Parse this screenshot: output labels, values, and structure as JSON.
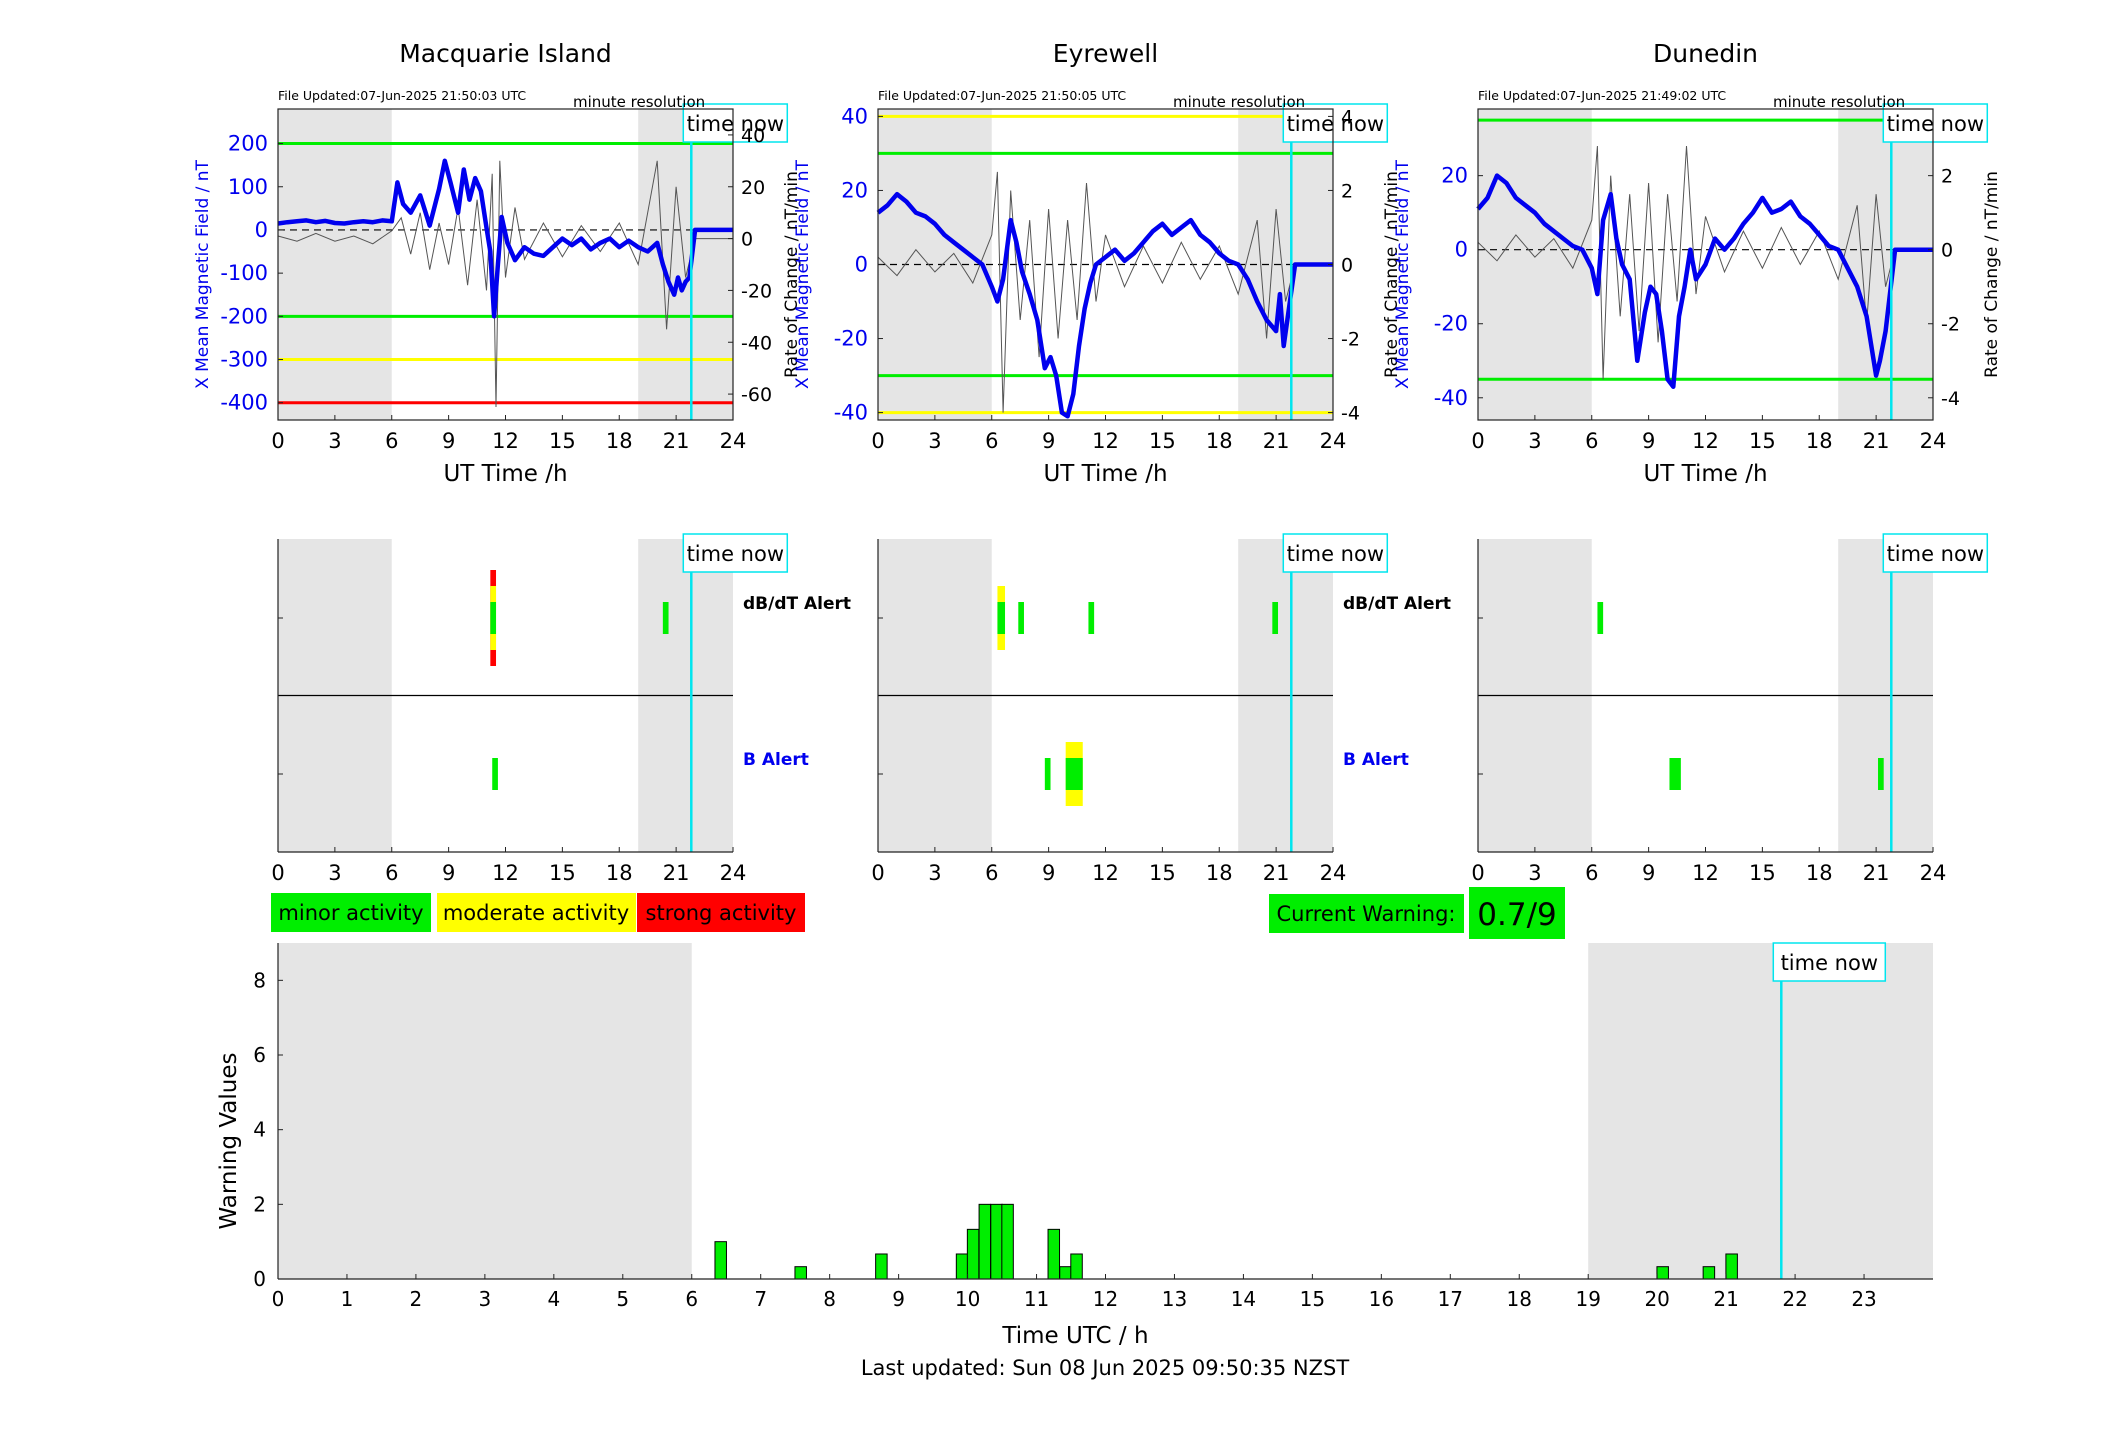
{
  "footer": "Last updated: Sun 08 Jun 2025 09:50:35 NZST",
  "time_now_label": "time now",
  "minute_resolution_label": "minute resolution",
  "colors": {
    "field_trace": "#0000ee",
    "rate_trace": "#555555",
    "time_now_line": "#00e5ee",
    "night_shade": "#e5e5e5",
    "minor": "#00ee00",
    "moderate": "#ffff00",
    "strong": "#ff0000",
    "alert_label_dbdt": "#000000",
    "alert_label_b": "#0000ee"
  },
  "legend": {
    "items": [
      {
        "label": "minor activity",
        "color": "#00ee00"
      },
      {
        "label": "moderate activity",
        "color": "#ffff00"
      },
      {
        "label": "strong activity",
        "color": "#ff0000"
      }
    ]
  },
  "current_warning": {
    "label": "Current Warning:",
    "value": "0.7/9"
  },
  "chart_data": [
    {
      "type": "line",
      "title": "Macquarie Island",
      "file_updated": "File Updated:07-Jun-2025 21:50:03 UTC",
      "xlabel": "UT Time /h",
      "ylabel": "X Mean Magnetic Field / nT",
      "ylabel_right": "Rate of Change / nT/min",
      "xlim": [
        0,
        24
      ],
      "xticks": [
        0,
        3,
        6,
        9,
        12,
        15,
        18,
        21,
        24
      ],
      "ylim": [
        -440,
        280
      ],
      "yticks": [
        -400,
        -300,
        -200,
        -100,
        0,
        100,
        200
      ],
      "ylim_right": [
        -70,
        50
      ],
      "yticks_right": [
        -60,
        -40,
        -20,
        0,
        20,
        40
      ],
      "night_shading_hours": [
        [
          0,
          6
        ],
        [
          19,
          24
        ]
      ],
      "time_now_hour": 21.8,
      "thresholds": [
        {
          "value": 200,
          "color": "#00ee00"
        },
        {
          "value": -200,
          "color": "#00ee00"
        },
        {
          "value": -300,
          "color": "#ffff00"
        },
        {
          "value": -400,
          "color": "#ff0000"
        }
      ],
      "field_series": {
        "x": [
          0,
          0.5,
          1,
          1.5,
          2,
          2.5,
          3,
          3.5,
          4,
          4.5,
          5,
          5.5,
          6,
          6.3,
          6.6,
          7,
          7.5,
          8,
          8.5,
          8.8,
          9.1,
          9.5,
          9.8,
          10.1,
          10.4,
          10.7,
          11,
          11.2,
          11.4,
          11.6,
          11.8,
          12.1,
          12.5,
          13,
          13.5,
          14,
          14.5,
          15,
          15.5,
          16,
          16.5,
          17,
          17.5,
          18,
          18.5,
          19,
          19.5,
          20,
          20.3,
          20.6,
          20.9,
          21.1,
          21.3,
          21.5,
          21.7,
          22,
          24
        ],
        "y": [
          15,
          18,
          20,
          22,
          18,
          21,
          16,
          15,
          18,
          20,
          18,
          22,
          20,
          110,
          60,
          40,
          80,
          10,
          95,
          160,
          110,
          40,
          140,
          70,
          120,
          90,
          5,
          -50,
          -200,
          -80,
          30,
          -30,
          -70,
          -40,
          -55,
          -60,
          -40,
          -20,
          -35,
          -20,
          -45,
          -30,
          -20,
          -40,
          -25,
          -40,
          -50,
          -30,
          -80,
          -120,
          -150,
          -110,
          -140,
          -120,
          -110,
          0,
          0
        ]
      },
      "rate_series": {
        "x": [
          0,
          1,
          2,
          3,
          4,
          5,
          6,
          6.5,
          7,
          7.5,
          8,
          8.5,
          9,
          9.5,
          10,
          10.5,
          11,
          11.3,
          11.5,
          11.7,
          12,
          12.5,
          13,
          14,
          15,
          16,
          17,
          18,
          19,
          20,
          20.5,
          21,
          21.5,
          22,
          24
        ],
        "y": [
          1,
          -1,
          2,
          -1,
          1,
          -2,
          3,
          8,
          -6,
          10,
          -12,
          6,
          -10,
          12,
          -18,
          15,
          -20,
          25,
          -65,
          30,
          -15,
          12,
          -8,
          6,
          -7,
          5,
          -5,
          6,
          -10,
          30,
          -35,
          20,
          -15,
          0,
          0
        ]
      }
    },
    {
      "type": "line",
      "title": "Eyrewell",
      "file_updated": "File Updated:07-Jun-2025 21:50:05 UTC",
      "xlabel": "UT Time /h",
      "ylabel": "X Mean Magnetic Field / nT",
      "ylabel_right": "Rate of Change / nT/min",
      "xlim": [
        0,
        24
      ],
      "xticks": [
        0,
        3,
        6,
        9,
        12,
        15,
        18,
        21,
        24
      ],
      "ylim": [
        -42,
        42
      ],
      "yticks": [
        -40,
        -20,
        0,
        20,
        40
      ],
      "ylim_right": [
        -4.2,
        4.2
      ],
      "yticks_right": [
        -4,
        -2,
        0,
        2,
        4
      ],
      "night_shading_hours": [
        [
          0,
          6
        ],
        [
          19,
          24
        ]
      ],
      "time_now_hour": 21.8,
      "thresholds": [
        {
          "value": 40,
          "color": "#ffff00"
        },
        {
          "value": 30,
          "color": "#00ee00"
        },
        {
          "value": -30,
          "color": "#00ee00"
        },
        {
          "value": -40,
          "color": "#ffff00"
        }
      ],
      "field_series": {
        "x": [
          0,
          0.5,
          1,
          1.5,
          2,
          2.5,
          3,
          3.5,
          4,
          4.5,
          5,
          5.5,
          6,
          6.3,
          6.6,
          7,
          7.3,
          7.6,
          8,
          8.4,
          8.8,
          9.1,
          9.4,
          9.7,
          10,
          10.3,
          10.6,
          10.9,
          11.2,
          11.5,
          12,
          12.5,
          13,
          13.5,
          14,
          14.5,
          15,
          15.5,
          16,
          16.5,
          17,
          17.5,
          18,
          18.5,
          19,
          19.5,
          20,
          20.5,
          21,
          21.2,
          21.4,
          22,
          24
        ],
        "y": [
          14,
          16,
          19,
          17,
          14,
          13,
          11,
          8,
          6,
          4,
          2,
          0,
          -6,
          -10,
          -4,
          12,
          6,
          -2,
          -8,
          -15,
          -28,
          -25,
          -30,
          -40,
          -41,
          -35,
          -22,
          -12,
          -5,
          0,
          2,
          4,
          1,
          3,
          6,
          9,
          11,
          8,
          10,
          12,
          8,
          6,
          3,
          1,
          0,
          -4,
          -10,
          -15,
          -18,
          -8,
          -22,
          0,
          0
        ]
      },
      "rate_series": {
        "x": [
          0,
          1,
          2,
          3,
          4,
          5,
          6,
          6.3,
          6.6,
          7,
          7.5,
          8,
          8.5,
          9,
          9.5,
          10,
          10.5,
          11,
          11.5,
          12,
          13,
          14,
          15,
          16,
          17,
          18,
          19,
          20,
          20.5,
          21,
          21.5,
          22,
          24
        ],
        "y": [
          0.2,
          -0.3,
          0.4,
          -0.2,
          0.3,
          -0.5,
          0.8,
          2.5,
          -4,
          2,
          -1.5,
          1.2,
          -2.5,
          1.5,
          -2,
          1.2,
          -1.5,
          2.2,
          -1,
          0.8,
          -0.6,
          0.5,
          -0.5,
          0.6,
          -0.4,
          0.5,
          -0.8,
          1.2,
          -2,
          1.5,
          -1,
          0,
          0
        ]
      }
    },
    {
      "type": "line",
      "title": "Dunedin",
      "file_updated": "File Updated:07-Jun-2025 21:49:02 UTC",
      "xlabel": "UT Time /h",
      "ylabel": "X Mean Magnetic Field / nT",
      "ylabel_right": "Rate of Change / nT/min",
      "xlim": [
        0,
        24
      ],
      "xticks": [
        0,
        3,
        6,
        9,
        12,
        15,
        18,
        21,
        24
      ],
      "ylim": [
        -46,
        38
      ],
      "yticks": [
        -40,
        -20,
        0,
        20
      ],
      "ylim_right": [
        -4.6,
        3.8
      ],
      "yticks_right": [
        -4,
        -2,
        0,
        2
      ],
      "night_shading_hours": [
        [
          0,
          6
        ],
        [
          19,
          24
        ]
      ],
      "time_now_hour": 21.8,
      "thresholds": [
        {
          "value": 35,
          "color": "#00ee00"
        },
        {
          "value": -35,
          "color": "#00ee00"
        }
      ],
      "field_series": {
        "x": [
          0,
          0.5,
          1,
          1.5,
          2,
          2.5,
          3,
          3.5,
          4,
          4.5,
          5,
          5.5,
          6,
          6.3,
          6.6,
          7,
          7.3,
          7.6,
          8,
          8.4,
          8.8,
          9.1,
          9.4,
          9.7,
          10,
          10.3,
          10.6,
          10.9,
          11.2,
          11.5,
          12,
          12.5,
          13,
          13.5,
          14,
          14.5,
          15,
          15.5,
          16,
          16.5,
          17,
          17.5,
          18,
          18.5,
          19,
          19.5,
          20,
          20.5,
          21,
          21.2,
          21.5,
          22,
          24
        ],
        "y": [
          11,
          14,
          20,
          18,
          14,
          12,
          10,
          7,
          5,
          3,
          1,
          0,
          -5,
          -12,
          8,
          15,
          3,
          -4,
          -8,
          -30,
          -17,
          -10,
          -12,
          -22,
          -35,
          -37,
          -18,
          -10,
          0,
          -8,
          -4,
          3,
          0,
          3,
          7,
          10,
          14,
          10,
          11,
          13,
          9,
          7,
          4,
          1,
          0,
          -5,
          -10,
          -18,
          -34,
          -30,
          -22,
          0,
          0
        ]
      },
      "rate_series": {
        "x": [
          0,
          1,
          2,
          3,
          4,
          5,
          6,
          6.3,
          6.6,
          7,
          7.5,
          8,
          8.5,
          9,
          9.5,
          10,
          10.5,
          11,
          11.5,
          12,
          13,
          14,
          15,
          16,
          17,
          18,
          19,
          20,
          20.5,
          21,
          21.5,
          22,
          24
        ],
        "y": [
          0.2,
          -0.3,
          0.4,
          -0.2,
          0.3,
          -0.5,
          0.8,
          2.8,
          -3.5,
          2,
          -1.8,
          1.5,
          -2.2,
          1.8,
          -2.5,
          1.5,
          -1.4,
          2.8,
          -1.2,
          0.9,
          -0.6,
          0.5,
          -0.5,
          0.6,
          -0.4,
          0.5,
          -0.8,
          1.2,
          -2,
          1.5,
          -1,
          0,
          0
        ]
      }
    },
    {
      "type": "heatmap",
      "title": "",
      "alert_rows": [
        {
          "label": "dB/dT Alert"
        },
        {
          "label": "B Alert"
        }
      ],
      "xlim": [
        0,
        24
      ],
      "xticks": [
        0,
        3,
        6,
        9,
        12,
        15,
        18,
        21,
        24
      ],
      "panels": [
        {
          "station": "Macquarie Island",
          "time_now_hour": 21.8,
          "night_shading_hours": [
            [
              0,
              6
            ],
            [
              19,
              24
            ]
          ],
          "alerts": [
            {
              "row": "dB/dT Alert",
              "start": 11.2,
              "end": 11.5,
              "level": "strong"
            },
            {
              "row": "dB/dT Alert",
              "start": 11.2,
              "end": 11.5,
              "level": "moderate"
            },
            {
              "row": "dB/dT Alert",
              "start": 11.2,
              "end": 11.5,
              "level": "minor"
            },
            {
              "row": "dB/dT Alert",
              "start": 20.3,
              "end": 20.6,
              "level": "minor"
            },
            {
              "row": "B Alert",
              "start": 11.3,
              "end": 11.6,
              "level": "minor"
            }
          ]
        },
        {
          "station": "Eyrewell",
          "time_now_hour": 21.8,
          "night_shading_hours": [
            [
              0,
              6
            ],
            [
              19,
              24
            ]
          ],
          "alerts": [
            {
              "row": "dB/dT Alert",
              "start": 6.3,
              "end": 6.7,
              "level": "moderate"
            },
            {
              "row": "dB/dT Alert",
              "start": 6.3,
              "end": 6.7,
              "level": "minor"
            },
            {
              "row": "dB/dT Alert",
              "start": 7.4,
              "end": 7.7,
              "level": "minor"
            },
            {
              "row": "dB/dT Alert",
              "start": 11.1,
              "end": 11.4,
              "level": "minor"
            },
            {
              "row": "dB/dT Alert",
              "start": 20.8,
              "end": 21.1,
              "level": "minor"
            },
            {
              "row": "B Alert",
              "start": 8.8,
              "end": 9.1,
              "level": "minor"
            },
            {
              "row": "B Alert",
              "start": 9.9,
              "end": 10.8,
              "level": "moderate"
            },
            {
              "row": "B Alert",
              "start": 9.9,
              "end": 10.8,
              "level": "minor"
            }
          ]
        },
        {
          "station": "Dunedin",
          "time_now_hour": 21.8,
          "night_shading_hours": [
            [
              0,
              6
            ],
            [
              19,
              24
            ]
          ],
          "alerts": [
            {
              "row": "dB/dT Alert",
              "start": 6.3,
              "end": 6.6,
              "level": "minor"
            },
            {
              "row": "B Alert",
              "start": 10.1,
              "end": 10.7,
              "level": "minor"
            },
            {
              "row": "B Alert",
              "start": 21.1,
              "end": 21.4,
              "level": "minor"
            }
          ]
        }
      ]
    },
    {
      "type": "bar",
      "title": "",
      "xlabel": "Time UTC / h",
      "ylabel": "Warning Values",
      "xlim": [
        0,
        24
      ],
      "xticks": [
        0,
        1,
        2,
        3,
        4,
        5,
        6,
        7,
        8,
        9,
        10,
        11,
        12,
        13,
        14,
        15,
        16,
        17,
        18,
        19,
        20,
        21,
        22,
        23
      ],
      "ylim": [
        0,
        9
      ],
      "yticks": [
        0,
        2,
        4,
        6,
        8
      ],
      "night_shading_hours": [
        [
          0,
          6
        ],
        [
          19,
          24
        ]
      ],
      "time_now_hour": 21.8,
      "bar_width_hours": 0.1667,
      "bars": [
        {
          "x": 6.42,
          "value": 1
        },
        {
          "x": 7.58,
          "value": 0.33
        },
        {
          "x": 8.75,
          "value": 0.67
        },
        {
          "x": 9.92,
          "value": 0.67
        },
        {
          "x": 10.08,
          "value": 1.33
        },
        {
          "x": 10.25,
          "value": 2
        },
        {
          "x": 10.42,
          "value": 2
        },
        {
          "x": 10.58,
          "value": 2
        },
        {
          "x": 11.25,
          "value": 1.33
        },
        {
          "x": 11.42,
          "value": 0.33
        },
        {
          "x": 11.58,
          "value": 0.67
        },
        {
          "x": 20.08,
          "value": 0.33
        },
        {
          "x": 20.75,
          "value": 0.33
        },
        {
          "x": 21.08,
          "value": 0.67
        }
      ]
    }
  ]
}
